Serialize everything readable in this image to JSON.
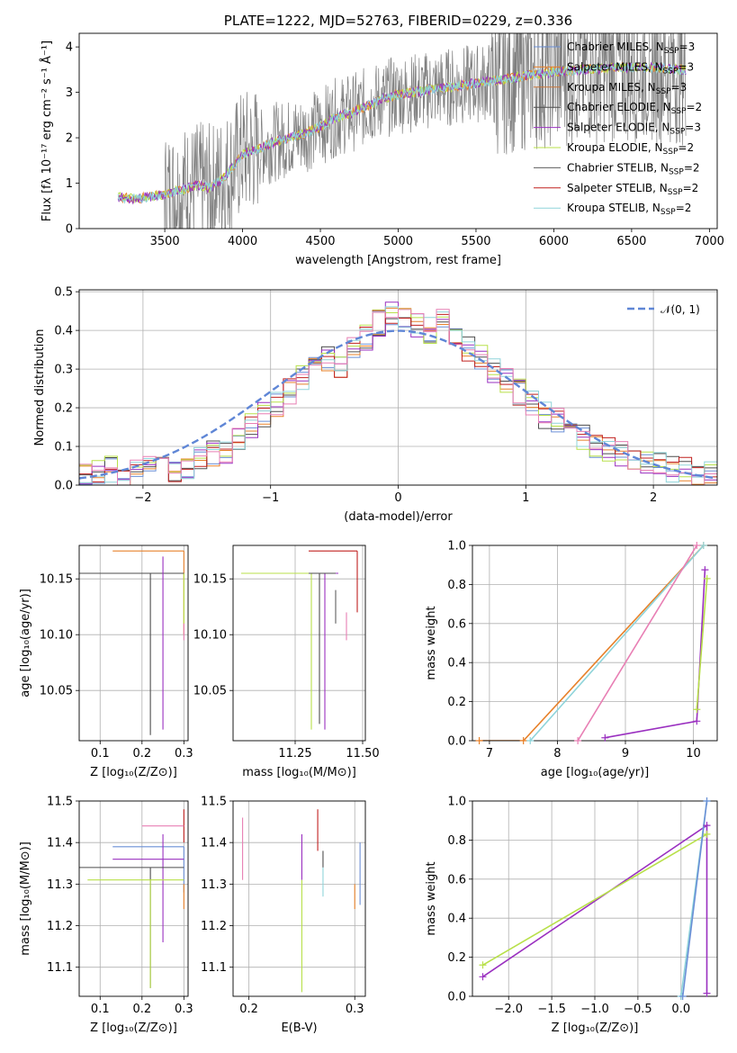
{
  "colors": {
    "chabrier_miles": "#6a8fd6",
    "salpeter_miles": "#e7812a",
    "kroupa_miles": "#c9763a",
    "chabrier_elodie": "#4d4d4d",
    "salpeter_elodie": "#9a30c0",
    "kroupa_elodie": "#b8e04a",
    "chabrier_stelib": "#5f5f5f",
    "salpeter_stelib": "#c0201f",
    "kroupa_stelib": "#8fd4da",
    "pink": "#e87fb4",
    "normal": "#5f86d6",
    "data": "#808080"
  },
  "chart_data": [
    {
      "id": "spectrum",
      "type": "line",
      "title": "PLATE=1222, MJD=52763, FIBERID=0229, z=0.336",
      "xlabel": "wavelength [Angstrom, rest frame]",
      "ylabel": "Flux [fλ 10⁻¹⁷ erg cm⁻² s⁻¹ Å⁻¹]",
      "xlim": [
        2950,
        7050
      ],
      "ylim": [
        0,
        4.3
      ],
      "xticks": [
        3500,
        4000,
        4500,
        5000,
        5500,
        6000,
        6500,
        7000
      ],
      "yticks": [
        0,
        1,
        2,
        3,
        4
      ],
      "model_curve": {
        "x": [
          3200,
          3300,
          3400,
          3500,
          3600,
          3700,
          3800,
          3900,
          4000,
          4100,
          4200,
          4300,
          4400,
          4500,
          4600,
          4700,
          4800,
          4900,
          5000,
          5200,
          5400,
          5600,
          5800,
          6000,
          6200,
          6400,
          6600,
          6850
        ],
        "y": [
          0.7,
          0.65,
          0.7,
          0.75,
          0.85,
          0.95,
          0.9,
          1.2,
          1.65,
          1.75,
          1.9,
          2.0,
          2.1,
          2.25,
          2.45,
          2.55,
          2.7,
          2.85,
          2.95,
          3.05,
          3.15,
          3.25,
          3.35,
          3.45,
          3.5,
          3.55,
          3.55,
          3.5
        ]
      },
      "legend": [
        {
          "label": "Chabrier MILES, N",
          "sub": "SSP",
          "suffix": "=3",
          "color_key": "chabrier_miles"
        },
        {
          "label": "Salpeter MILES, N",
          "sub": "SSP",
          "suffix": "=3",
          "color_key": "salpeter_miles"
        },
        {
          "label": "Kroupa MILES, N",
          "sub": "SSP",
          "suffix": "=3",
          "color_key": "kroupa_miles"
        },
        {
          "label": "Chabrier ELODIE, N",
          "sub": "SSP",
          "suffix": "=2",
          "color_key": "chabrier_elodie"
        },
        {
          "label": "Salpeter ELODIE, N",
          "sub": "SSP",
          "suffix": "=3",
          "color_key": "salpeter_elodie"
        },
        {
          "label": "Kroupa ELODIE, N",
          "sub": "SSP",
          "suffix": "=2",
          "color_key": "kroupa_elodie"
        },
        {
          "label": "Chabrier STELIB, N",
          "sub": "SSP",
          "suffix": "=2",
          "color_key": "chabrier_stelib"
        },
        {
          "label": "Salpeter STELIB, N",
          "sub": "SSP",
          "suffix": "=2",
          "color_key": "salpeter_stelib"
        },
        {
          "label": "Kroupa STELIB, N",
          "sub": "SSP",
          "suffix": "=2",
          "color_key": "kroupa_stelib"
        }
      ],
      "legend_placement": "top-right"
    },
    {
      "id": "residuals",
      "type": "histogram",
      "xlabel": "(data-model)/error",
      "ylabel": "Normed distribution",
      "xlim": [
        -2.5,
        2.5
      ],
      "ylim": [
        0,
        0.505
      ],
      "xticks": [
        -2,
        -1,
        0,
        1,
        2
      ],
      "yticks": [
        0.0,
        0.1,
        0.2,
        0.3,
        0.4,
        0.5
      ],
      "bin_width": 0.1,
      "hist_start": -2.5,
      "histogram": [
        0.02,
        0.03,
        0.04,
        0.02,
        0.03,
        0.04,
        0.05,
        0.03,
        0.05,
        0.07,
        0.08,
        0.09,
        0.12,
        0.15,
        0.18,
        0.21,
        0.24,
        0.28,
        0.3,
        0.33,
        0.31,
        0.35,
        0.38,
        0.42,
        0.44,
        0.43,
        0.41,
        0.4,
        0.42,
        0.38,
        0.35,
        0.33,
        0.3,
        0.27,
        0.24,
        0.21,
        0.18,
        0.17,
        0.15,
        0.12,
        0.1,
        0.09,
        0.08,
        0.07,
        0.06,
        0.05,
        0.04,
        0.04,
        0.03,
        0.03
      ],
      "legend": [
        {
          "label": "𝒩(0, 1)",
          "color_key": "normal"
        }
      ],
      "legend_placement": "top-right"
    },
    {
      "id": "age_vs_Z",
      "type": "scatter",
      "xlabel": "Z [log₁₀(Z/Z⊙)]",
      "ylabel": "age  [log₁₀(age/yr)]",
      "xlim": [
        0.05,
        0.31
      ],
      "ylim": [
        10.005,
        10.18
      ],
      "xticks": [
        0.1,
        0.2,
        0.3
      ],
      "yticks": [
        10.05,
        10.1,
        10.15
      ],
      "ytick_labels": [
        "10.05",
        "10.10",
        "10.15"
      ],
      "series": [
        {
          "color_key": "salpeter_miles",
          "x": 0.3,
          "y": 10.175,
          "xerr": [
            0.13,
            0.3
          ],
          "yerr": [
            10.1,
            10.175
          ]
        },
        {
          "color_key": "kroupa_elodie",
          "x": 0.3,
          "y": 10.155,
          "xerr": [
            0.07,
            0.3
          ],
          "yerr": [
            10.11,
            10.155
          ]
        },
        {
          "color_key": "chabrier_elodie",
          "x": 0.22,
          "y": 10.155,
          "xerr": [
            0.05,
            0.3
          ],
          "yerr": [
            10.01,
            10.155
          ]
        },
        {
          "color_key": "salpeter_elodie",
          "x": 0.25,
          "y": 10.17,
          "xerr": [
            0.25,
            0.25
          ],
          "yerr": [
            10.015,
            10.17
          ]
        },
        {
          "color_key": "pink",
          "x": 0.3,
          "y": 10.11,
          "xerr": [
            0.3,
            0.3
          ],
          "yerr": [
            10.095,
            10.11
          ]
        }
      ]
    },
    {
      "id": "age_vs_mass",
      "type": "scatter",
      "xlabel": "mass [log₁₀(M/M⊙)]",
      "ylabel": "",
      "xlim": [
        11.02,
        11.51
      ],
      "ylim": [
        10.005,
        10.18
      ],
      "xticks": [
        11.25,
        11.5
      ],
      "xtick_labels": [
        "11.25",
        "11.50"
      ],
      "yticks": [
        10.05,
        10.1,
        10.15
      ],
      "ytick_labels": [
        "10.05",
        "10.10",
        "10.15"
      ],
      "series": [
        {
          "color_key": "salpeter_stelib",
          "x": 11.48,
          "y": 10.175,
          "xerr": [
            11.3,
            11.48
          ],
          "yerr": [
            10.12,
            10.175
          ]
        },
        {
          "color_key": "kroupa_elodie",
          "x": 11.31,
          "y": 10.155,
          "xerr": [
            11.05,
            11.31
          ],
          "yerr": [
            10.015,
            10.155
          ]
        },
        {
          "color_key": "salpeter_elodie",
          "x": 11.36,
          "y": 10.155,
          "xerr": [
            11.3,
            11.41
          ],
          "yerr": [
            10.015,
            10.155
          ]
        },
        {
          "color_key": "chabrier_elodie",
          "x": 11.34,
          "y": 10.155,
          "xerr": [
            11.3,
            11.4
          ],
          "yerr": [
            10.02,
            10.155
          ]
        },
        {
          "color_key": "pink",
          "x": 11.44,
          "y": 10.12,
          "xerr": [
            11.44,
            11.44
          ],
          "yerr": [
            10.095,
            10.12
          ]
        },
        {
          "color_key": "chabrier_stelib",
          "x": 11.4,
          "y": 10.14,
          "xerr": [
            11.4,
            11.4
          ],
          "yerr": [
            10.11,
            10.14
          ]
        }
      ]
    },
    {
      "id": "weight_vs_age",
      "type": "line",
      "xlabel": "age  [log₁₀(age/yr)]",
      "ylabel": "mass weight",
      "xlim": [
        6.75,
        10.35
      ],
      "ylim": [
        0,
        1.0
      ],
      "xticks": [
        7,
        8,
        9,
        10
      ],
      "yticks": [
        0.0,
        0.2,
        0.4,
        0.6,
        0.8,
        1.0
      ],
      "series": [
        {
          "color_key": "salpeter_miles",
          "x": [
            6.85,
            7.5,
            10.15
          ],
          "y": [
            0.0,
            0.0,
            1.0
          ]
        },
        {
          "color_key": "kroupa_stelib",
          "x": [
            7.6,
            10.15
          ],
          "y": [
            0.0,
            1.0
          ]
        },
        {
          "color_key": "pink",
          "x": [
            8.3,
            10.05
          ],
          "y": [
            0.0,
            1.0
          ]
        },
        {
          "color_key": "salpeter_elodie",
          "x": [
            8.7,
            10.05,
            10.17
          ],
          "y": [
            0.015,
            0.1,
            0.875
          ]
        },
        {
          "color_key": "kroupa_elodie",
          "x": [
            10.05,
            10.2
          ],
          "y": [
            0.16,
            0.83
          ]
        }
      ]
    },
    {
      "id": "mass_vs_Z",
      "type": "scatter",
      "xlabel": "Z [log₁₀(Z/Z⊙)]",
      "ylabel": "mass [log₁₀(M/M⊙)]",
      "xlim": [
        0.05,
        0.31
      ],
      "ylim": [
        11.03,
        11.5
      ],
      "xticks": [
        0.1,
        0.2,
        0.3
      ],
      "yticks": [
        11.1,
        11.2,
        11.3,
        11.4,
        11.5
      ],
      "series": [
        {
          "color_key": "salpeter_stelib",
          "x": 0.3,
          "y": 11.48,
          "xerr": [
            0.3,
            0.3
          ],
          "yerr": [
            11.4,
            11.48
          ]
        },
        {
          "color_key": "pink",
          "x": 0.3,
          "y": 11.44,
          "xerr": [
            0.2,
            0.3
          ],
          "yerr": [
            11.44,
            11.44
          ]
        },
        {
          "color_key": "chabrier_miles",
          "x": 0.3,
          "y": 11.39,
          "xerr": [
            0.13,
            0.3
          ],
          "yerr": [
            11.28,
            11.39
          ]
        },
        {
          "color_key": "salpeter_elodie",
          "x": 0.25,
          "y": 11.36,
          "xerr": [
            0.13,
            0.3
          ],
          "yerr": [
            11.16,
            11.42
          ]
        },
        {
          "color_key": "chabrier_elodie",
          "x": 0.22,
          "y": 11.34,
          "xerr": [
            0.05,
            0.3
          ],
          "yerr": [
            11.05,
            11.34
          ]
        },
        {
          "color_key": "kroupa_elodie",
          "x": 0.22,
          "y": 11.31,
          "xerr": [
            0.07,
            0.3
          ],
          "yerr": [
            11.05,
            11.31
          ]
        },
        {
          "color_key": "salpeter_miles",
          "x": 0.3,
          "y": 11.25,
          "xerr": [
            0.3,
            0.3
          ],
          "yerr": [
            11.24,
            11.3
          ]
        }
      ]
    },
    {
      "id": "mass_vs_EBV",
      "type": "scatter",
      "xlabel": "E(B-V)",
      "ylabel": "",
      "xlim": [
        0.185,
        0.31
      ],
      "ylim": [
        11.03,
        11.5
      ],
      "xticks": [
        0.2,
        0.3
      ],
      "yticks": [
        11.1,
        11.2,
        11.3,
        11.4,
        11.5
      ],
      "series": [
        {
          "color_key": "pink",
          "x": 0.194,
          "y": 11.46,
          "yerr": [
            11.31,
            11.46
          ]
        },
        {
          "color_key": "salpeter_elodie",
          "x": 0.25,
          "y": 11.42,
          "yerr": [
            11.31,
            11.42
          ]
        },
        {
          "color_key": "kroupa_elodie",
          "x": 0.25,
          "y": 11.31,
          "yerr": [
            11.04,
            11.31
          ]
        },
        {
          "color_key": "salpeter_stelib",
          "x": 0.265,
          "y": 11.48,
          "yerr": [
            11.38,
            11.48
          ]
        },
        {
          "color_key": "chabrier_elodie",
          "x": 0.27,
          "y": 11.38,
          "yerr": [
            11.34,
            11.38
          ]
        },
        {
          "color_key": "kroupa_stelib",
          "x": 0.27,
          "y": 11.3,
          "yerr": [
            11.27,
            11.34
          ]
        },
        {
          "color_key": "salpeter_miles",
          "x": 0.3,
          "y": 11.3,
          "yerr": [
            11.24,
            11.3
          ]
        },
        {
          "color_key": "chabrier_miles",
          "x": 0.305,
          "y": 11.4,
          "yerr": [
            11.25,
            11.4
          ]
        }
      ]
    },
    {
      "id": "weight_vs_Z",
      "type": "line",
      "xlabel": "Z [log₁₀(Z/Z⊙)]",
      "ylabel": "mass weight",
      "xlim": [
        -2.42,
        0.42
      ],
      "ylim": [
        0,
        1.0
      ],
      "xticks": [
        -2.0,
        -1.5,
        -1.0,
        -0.5,
        0.0
      ],
      "xtick_labels": [
        "−2.0",
        "−1.5",
        "−1.0",
        "−0.5",
        "0.0"
      ],
      "yticks": [
        0.0,
        0.2,
        0.4,
        0.6,
        0.8,
        1.0
      ],
      "series": [
        {
          "color_key": "salpeter_elodie",
          "x": [
            -2.3,
            0.3,
            0.3
          ],
          "y": [
            0.1,
            0.875,
            0.015
          ]
        },
        {
          "color_key": "kroupa_elodie",
          "x": [
            -2.3,
            0.3
          ],
          "y": [
            0.16,
            0.83
          ]
        },
        {
          "color_key": "kroupa_stelib",
          "x": [
            0.0,
            0.3
          ],
          "y": [
            0.0,
            1.0
          ]
        },
        {
          "color_key": "chabrier_miles",
          "x": [
            0.02,
            0.3
          ],
          "y": [
            0.0,
            1.0
          ]
        }
      ]
    }
  ]
}
